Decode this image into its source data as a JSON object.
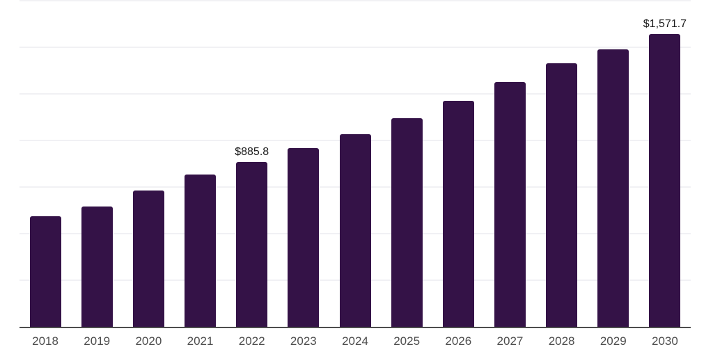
{
  "chart_data": {
    "type": "bar",
    "title": "",
    "xlabel": "",
    "ylabel": "",
    "categories": [
      "2018",
      "2019",
      "2020",
      "2021",
      "2022",
      "2023",
      "2024",
      "2025",
      "2026",
      "2027",
      "2028",
      "2029",
      "2030"
    ],
    "values": [
      594,
      646,
      733,
      818,
      885.8,
      959,
      1034,
      1120,
      1213,
      1314,
      1415,
      1489,
      1571.7
    ],
    "data_labels": {
      "2022": "$885.8",
      "2030": "$1,571.7"
    },
    "currency_prefix": "$",
    "ylim": [
      0,
      1750
    ],
    "grid_step": 250,
    "grid": "horizontal",
    "y_axis_tick_labels_visible": false,
    "legend_position": "none",
    "colors": {
      "bar": "#341247",
      "gridline": "#f1f1f4",
      "axis_line": "#4d4d4d",
      "tick_label": "#4d4d4d",
      "data_label": "#1a1a1a",
      "background": "#ffffff"
    }
  }
}
